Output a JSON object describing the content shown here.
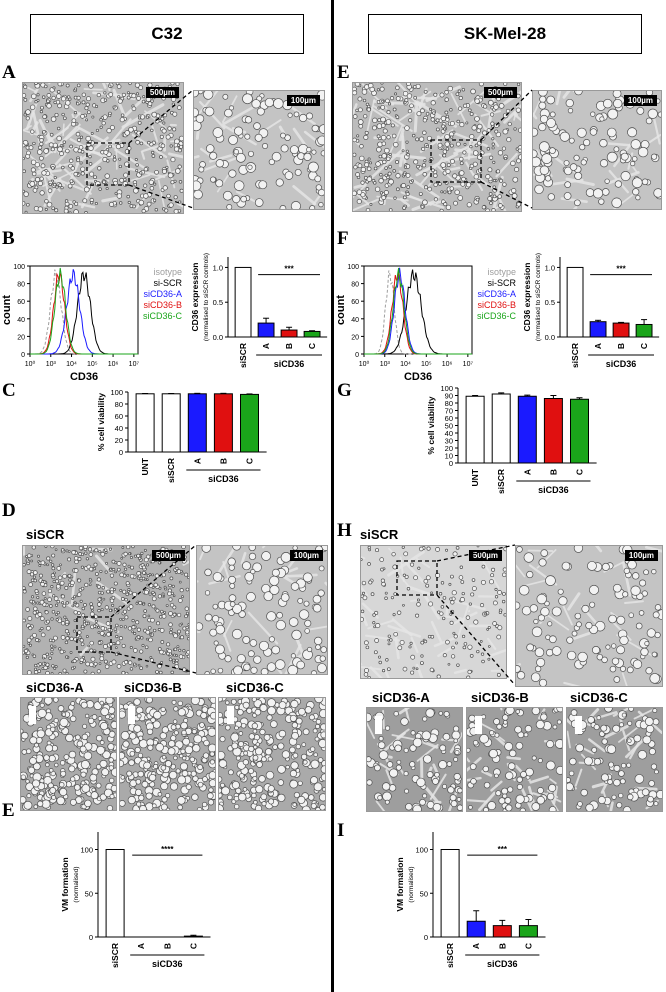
{
  "left": {
    "title": "C32",
    "letters": [
      "A",
      "B",
      "C",
      "D",
      "E"
    ],
    "scale_small": "500µm",
    "scale_large": "100µm",
    "hist": {
      "ylabel": "count",
      "xlabel": "CD36",
      "yticks": [
        "0",
        "20",
        "40",
        "60",
        "80",
        "100"
      ],
      "xticks": [
        "10⁰",
        "10³",
        "10⁴",
        "10⁵",
        "10⁶",
        "10⁷"
      ],
      "legend": [
        {
          "label": "isotype",
          "color": "#9e9e9e"
        },
        {
          "label": "si-SCR",
          "color": "#000000"
        },
        {
          "label": "siCD36-A",
          "color": "#1a1aff"
        },
        {
          "label": "siCD36-B",
          "color": "#e01010"
        },
        {
          "label": "siCD36-C",
          "color": "#1aa51a"
        }
      ]
    },
    "d_label": "siSCR",
    "d_labels": [
      {
        "text": "siCD36-A",
        "color": "#1a1aff"
      },
      {
        "text": "siCD36-B",
        "color": "#e01010"
      },
      {
        "text": "siCD36-C",
        "color": "#1aa51a"
      }
    ]
  },
  "right": {
    "title": "SK-Mel-28",
    "letters": [
      "E",
      "F",
      "G",
      "H",
      "I"
    ],
    "scale_small": "500µm",
    "scale_large": "100µm",
    "hist": {
      "ylabel": "count",
      "xlabel": "CD36",
      "yticks": [
        "0",
        "20",
        "40",
        "60",
        "80",
        "100"
      ],
      "xticks": [
        "10⁰",
        "10³",
        "10⁴",
        "10⁵",
        "10⁶",
        "10⁷"
      ],
      "legend": [
        {
          "label": "isotype",
          "color": "#9e9e9e"
        },
        {
          "label": "si-SCR",
          "color": "#000000"
        },
        {
          "label": "siCD36-A",
          "color": "#1a1aff"
        },
        {
          "label": "siCD36-B",
          "color": "#e01010"
        },
        {
          "label": "siCD36-C",
          "color": "#1aa51a"
        }
      ]
    },
    "d_label": "siSCR",
    "d_labels": [
      {
        "text": "siCD36-A",
        "color": "#1a1aff"
      },
      {
        "text": "siCD36-B",
        "color": "#e01010"
      },
      {
        "text": "siCD36-C",
        "color": "#1aa51a"
      }
    ]
  },
  "chart_data": [
    {
      "id": "c32-cd36",
      "type": "bar",
      "ylabel": "CD36 expression",
      "ylabel2": "(normalised to siSCR controls)",
      "categories": [
        "siSCR",
        "A",
        "B",
        "C"
      ],
      "group_label": "siCD36",
      "values": [
        1.0,
        0.2,
        0.1,
        0.08
      ],
      "errors": [
        0,
        0.07,
        0.04,
        0.01
      ],
      "colors": [
        "#ffffff",
        "#1a1aff",
        "#e01010",
        "#1aa51a"
      ],
      "ylim": [
        0,
        1.15
      ],
      "yticks": [
        0,
        0.5,
        1.0
      ],
      "ytick_labels": [
        "0.0",
        "0.5",
        "1.0"
      ],
      "sig": "***",
      "sig_from": 1,
      "sig_to": 3
    },
    {
      "id": "skmel-cd36",
      "type": "bar",
      "ylabel": "CD36 expression",
      "ylabel2": "(normalised to siSCR controls)",
      "categories": [
        "siSCR",
        "A",
        "B",
        "C"
      ],
      "group_label": "siCD36",
      "values": [
        1.0,
        0.22,
        0.2,
        0.18
      ],
      "errors": [
        0,
        0.02,
        0.01,
        0.07
      ],
      "colors": [
        "#ffffff",
        "#1a1aff",
        "#e01010",
        "#1aa51a"
      ],
      "ylim": [
        0,
        1.15
      ],
      "yticks": [
        0,
        0.5,
        1.0
      ],
      "ytick_labels": [
        "0.0",
        "0.5",
        "1.0"
      ],
      "sig": "***",
      "sig_from": 1,
      "sig_to": 3
    },
    {
      "id": "c32-viab",
      "type": "bar",
      "ylabel": "% cell viability",
      "categories": [
        "UNT",
        "siSCR",
        "A",
        "B",
        "C"
      ],
      "group_label": "siCD36",
      "values": [
        97,
        97,
        97,
        97,
        96
      ],
      "errors": [
        0.5,
        0.5,
        0.8,
        0.8,
        0.8
      ],
      "colors": [
        "#ffffff",
        "#ffffff",
        "#1a1aff",
        "#e01010",
        "#1aa51a"
      ],
      "ylim": [
        0,
        100
      ],
      "yticks": [
        0,
        20,
        40,
        60,
        80,
        100
      ],
      "ytick_labels": [
        "0",
        "20",
        "40",
        "60",
        "80",
        "100"
      ]
    },
    {
      "id": "skmel-viab",
      "type": "bar",
      "ylabel": "% cell viability",
      "categories": [
        "UNT",
        "siSCR",
        "A",
        "B",
        "C"
      ],
      "group_label": "siCD36",
      "values": [
        89,
        92,
        89,
        86,
        85
      ],
      "errors": [
        1,
        1.5,
        1.5,
        4,
        2
      ],
      "colors": [
        "#ffffff",
        "#ffffff",
        "#1a1aff",
        "#e01010",
        "#1aa51a"
      ],
      "ylim": [
        0,
        100
      ],
      "yticks": [
        0,
        10,
        20,
        30,
        40,
        50,
        60,
        70,
        80,
        90,
        100
      ],
      "ytick_labels": [
        "0",
        "10",
        "20",
        "30",
        "40",
        "50",
        "60",
        "70",
        "80",
        "90",
        "100"
      ]
    },
    {
      "id": "c32-vm",
      "type": "bar",
      "ylabel": "VM formation",
      "ylabel2": "(normalised)",
      "categories": [
        "siSCR",
        "A",
        "B",
        "C"
      ],
      "group_label": "siCD36",
      "values": [
        100,
        0,
        0,
        1
      ],
      "errors": [
        0,
        0,
        0,
        1
      ],
      "colors": [
        "#ffffff",
        "#1a1aff",
        "#e01010",
        "#1aa51a"
      ],
      "ylim": [
        0,
        120
      ],
      "yticks": [
        0,
        50,
        100
      ],
      "ytick_labels": [
        "0",
        "50",
        "100"
      ],
      "sig": "****",
      "sig_from": 1,
      "sig_to": 3
    },
    {
      "id": "skmel-vm",
      "type": "bar",
      "ylabel": "VM formation",
      "ylabel2": "(normalised)",
      "categories": [
        "siSCR",
        "A",
        "B",
        "C"
      ],
      "group_label": "siCD36",
      "values": [
        100,
        18,
        13,
        13
      ],
      "errors": [
        0,
        12,
        6,
        7
      ],
      "colors": [
        "#ffffff",
        "#1a1aff",
        "#e01010",
        "#1aa51a"
      ],
      "ylim": [
        0,
        120
      ],
      "yticks": [
        0,
        50,
        100
      ],
      "ytick_labels": [
        "0",
        "50",
        "100"
      ],
      "sig": "***",
      "sig_from": 1,
      "sig_to": 3
    }
  ]
}
